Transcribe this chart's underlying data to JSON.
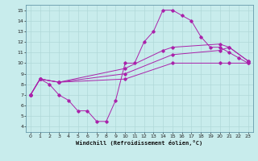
{
  "background_color": "#c8ecec",
  "line_color": "#aa22aa",
  "grid_color": "#b0d8d8",
  "xlabel": "Windchill (Refroidissement éolien,°C)",
  "xlim": [
    -0.5,
    23.5
  ],
  "ylim": [
    3.5,
    15.5
  ],
  "xticks": [
    0,
    1,
    2,
    3,
    4,
    5,
    6,
    7,
    8,
    9,
    10,
    11,
    12,
    13,
    14,
    15,
    16,
    17,
    18,
    19,
    20,
    21,
    22,
    23
  ],
  "yticks": [
    4,
    5,
    6,
    7,
    8,
    9,
    10,
    11,
    12,
    13,
    14,
    15
  ],
  "line1_x": [
    0,
    1,
    2,
    3,
    4,
    5,
    6,
    7,
    8,
    9,
    10,
    11,
    12,
    13,
    14,
    15,
    16,
    17,
    18,
    19,
    20,
    21,
    22,
    23
  ],
  "line1_y": [
    7.0,
    8.5,
    8.0,
    7.0,
    6.5,
    5.5,
    5.5,
    4.5,
    4.5,
    6.5,
    10.0,
    10.0,
    12.0,
    13.0,
    15.0,
    15.0,
    14.5,
    14.0,
    12.5,
    11.5,
    11.5,
    11.0,
    10.5,
    10.0
  ],
  "line2_x": [
    0,
    1,
    3,
    10,
    14,
    15,
    20,
    21,
    23
  ],
  "line2_y": [
    7.0,
    8.5,
    8.2,
    9.5,
    11.2,
    11.5,
    11.8,
    11.5,
    10.2
  ],
  "line3_x": [
    0,
    1,
    3,
    10,
    15,
    20,
    21,
    23
  ],
  "line3_y": [
    7.0,
    8.5,
    8.2,
    9.0,
    10.8,
    11.2,
    11.5,
    10.2
  ],
  "line4_x": [
    0,
    1,
    3,
    10,
    15,
    20,
    21,
    23
  ],
  "line4_y": [
    7.0,
    8.5,
    8.2,
    8.5,
    10.0,
    10.0,
    10.0,
    10.0
  ]
}
